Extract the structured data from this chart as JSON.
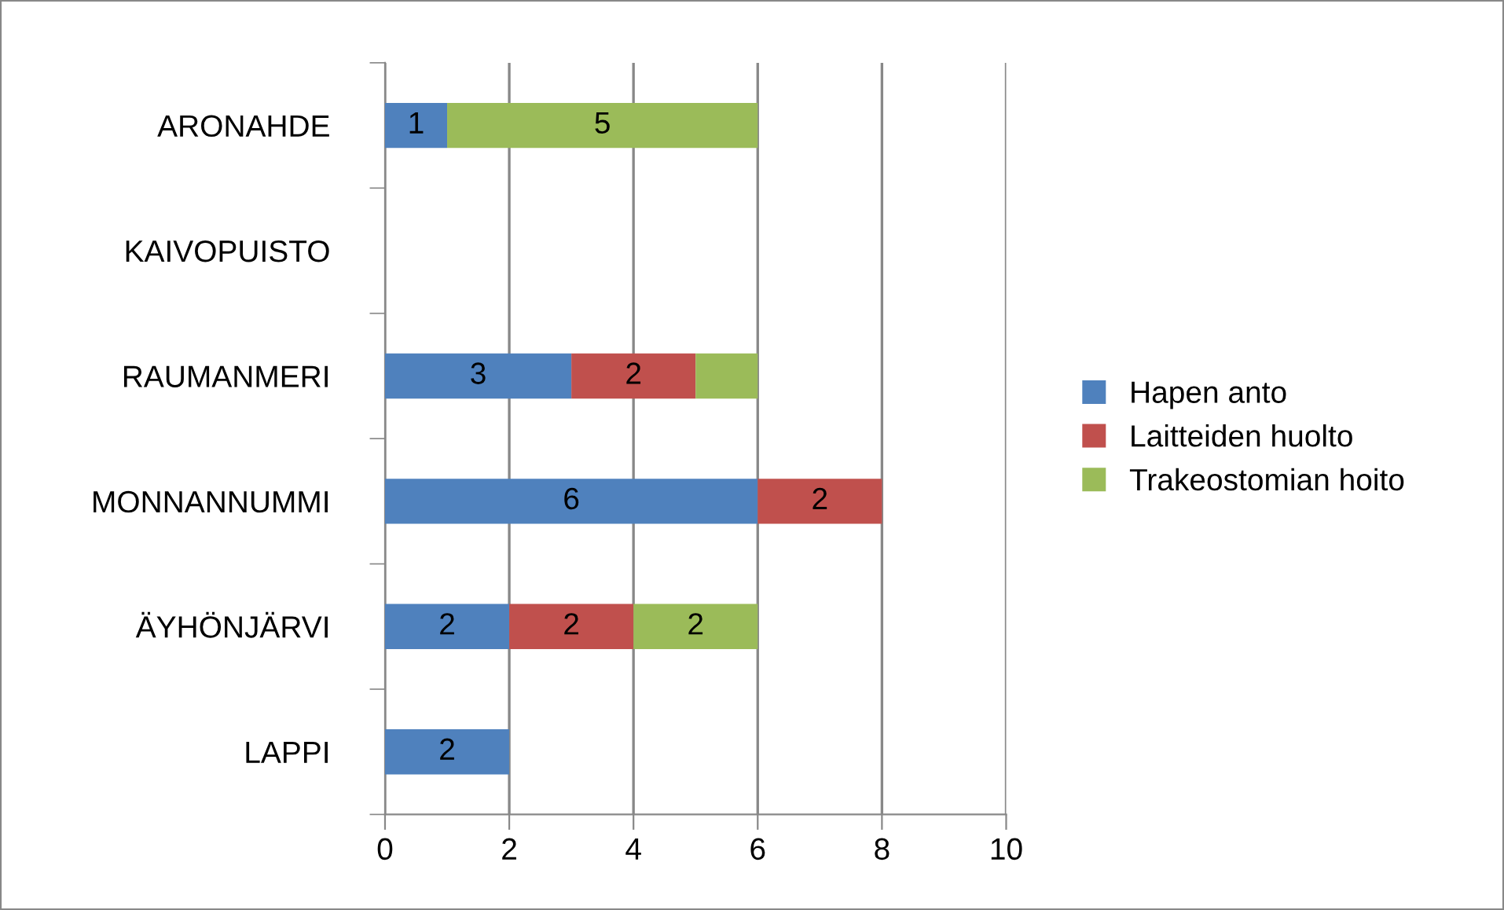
{
  "chart_data": {
    "type": "bar",
    "orientation": "horizontal",
    "stacked": true,
    "categories": [
      "ARONAHDE",
      "KAIVOPUISTO",
      "RAUMANMERI",
      "MONNANNUMMI",
      "ÄYHÖNJÄRVI",
      "LAPPI"
    ],
    "series": [
      {
        "name": "Hapen anto",
        "color": "#4f81bd",
        "values": [
          1,
          null,
          3,
          6,
          2,
          2
        ],
        "value_labels": [
          "1",
          null,
          "3",
          "6",
          "2",
          "2"
        ]
      },
      {
        "name": "Laitteiden huolto",
        "color": "#c0504d",
        "values": [
          null,
          null,
          2,
          2,
          2,
          null
        ],
        "value_labels": [
          null,
          null,
          "2",
          "2",
          "2",
          null
        ]
      },
      {
        "name": "Trakeostomian hoito",
        "color": "#9bbb59",
        "values": [
          5,
          null,
          1,
          null,
          2,
          null
        ],
        "value_labels": [
          "5",
          null,
          null,
          null,
          "2",
          null
        ]
      }
    ],
    "xlim": [
      0,
      10
    ],
    "xticks": [
      0,
      2,
      4,
      6,
      8,
      10
    ],
    "grid": "x",
    "legend": "right"
  }
}
